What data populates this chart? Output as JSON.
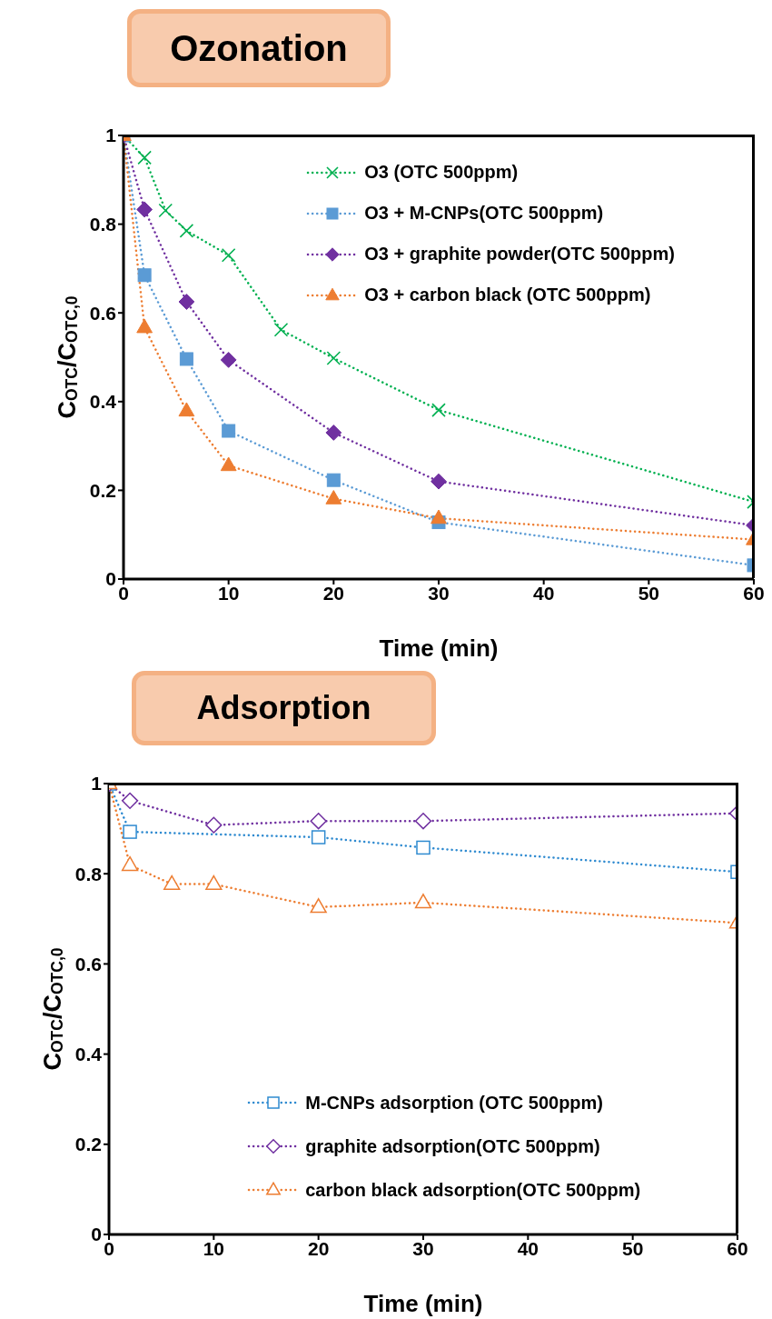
{
  "chart_data": [
    {
      "type": "line",
      "title": "Ozonation",
      "xlabel": "Time (min)",
      "ylabel": "C$_{OTC}$/C$_{OTC,0}$",
      "xlim": [
        0,
        60
      ],
      "xticks": [
        0,
        10,
        20,
        30,
        40,
        50,
        60
      ],
      "ylim": [
        0,
        1
      ],
      "yticks": [
        0,
        0.2,
        0.4,
        0.6,
        0.8,
        1
      ],
      "legend": "top right",
      "line_style": "dotted",
      "grid": false,
      "series": [
        {
          "name": "O3 (OTC 500ppm)",
          "color": "#00b050",
          "marker": "cross",
          "x": [
            0,
            2,
            4,
            6,
            10,
            15,
            20,
            30,
            60
          ],
          "values": [
            1,
            0.95,
            0.831,
            0.785,
            0.73,
            0.562,
            0.498,
            0.381,
            0.174
          ]
        },
        {
          "name": "O3 + M-CNPs(OTC 500ppm)",
          "color": "#5b9bd5",
          "marker": "square",
          "x": [
            0,
            2,
            6,
            10,
            20,
            30,
            60
          ],
          "values": [
            1,
            0.685,
            0.496,
            0.334,
            0.223,
            0.128,
            0.031
          ]
        },
        {
          "name": "O3 + graphite powder(OTC 500ppm)",
          "color": "#7030a0",
          "marker": "diamond",
          "x": [
            0,
            2,
            6,
            10,
            20,
            30,
            60
          ],
          "values": [
            1,
            0.833,
            0.625,
            0.494,
            0.33,
            0.22,
            0.121
          ]
        },
        {
          "name": "O3 + carbon black (OTC 500ppm)",
          "color": "#ed7d31",
          "marker": "triangle",
          "x": [
            0,
            2,
            6,
            10,
            20,
            30,
            60
          ],
          "values": [
            1,
            0.567,
            0.379,
            0.256,
            0.181,
            0.137,
            0.089
          ]
        }
      ]
    },
    {
      "type": "line",
      "title": "Adsorption",
      "xlabel": "Time (min)",
      "ylabel": "C$_{OTC}$/C$_{OTC,0}$",
      "xlim": [
        0,
        60
      ],
      "xticks": [
        0,
        10,
        20,
        30,
        40,
        50,
        60
      ],
      "ylim": [
        0,
        1
      ],
      "yticks": [
        0,
        0.2,
        0.4,
        0.6,
        0.8,
        1
      ],
      "legend": "bottom",
      "line_style": "dotted",
      "grid": false,
      "series": [
        {
          "name": "M-CNPs adsorption (OTC 500ppm)",
          "color": "#2e8ad0",
          "marker": "square",
          "x": [
            0,
            2,
            20,
            30,
            60
          ],
          "values": [
            1,
            0.893,
            0.881,
            0.858,
            0.804
          ]
        },
        {
          "name": "graphite adsorption(OTC 500ppm)",
          "color": "#7030a0",
          "marker": "diamond",
          "x": [
            0,
            2,
            10,
            20,
            30,
            60
          ],
          "values": [
            1,
            0.962,
            0.908,
            0.917,
            0.917,
            0.934
          ]
        },
        {
          "name": "carbon black adsorption(OTC 500ppm)",
          "color": "#ed7d31",
          "marker": "triangle",
          "x": [
            0,
            2,
            6,
            10,
            20,
            30,
            60
          ],
          "values": [
            1,
            0.819,
            0.777,
            0.777,
            0.726,
            0.736,
            0.691
          ]
        }
      ]
    }
  ]
}
